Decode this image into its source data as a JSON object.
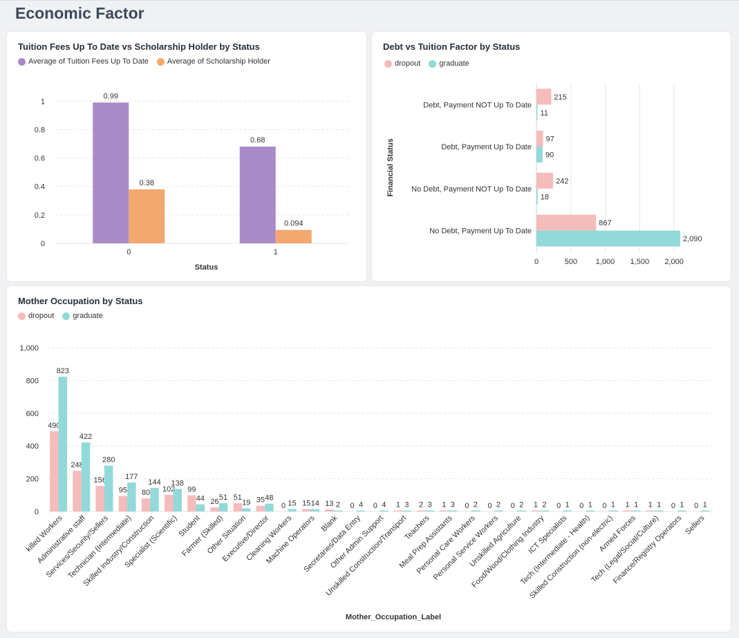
{
  "page": {
    "title": "Economic Factor"
  },
  "colors": {
    "purple": "#a98ac8",
    "orange": "#f2a86f",
    "dropout": "#f5bcbc",
    "graduate": "#93d9d9",
    "grid": "#e4e6ea",
    "text": "#333333"
  },
  "charts": {
    "tuition": {
      "title": "Tuition Fees Up To Date vs Scholarship Holder by Status",
      "legend": [
        "Average of Tuition Fees Up To Date",
        "Average of Scholarship Holder"
      ],
      "xlabel": "Status",
      "ticks": [
        "1",
        "0.8",
        "0.6",
        "0.4",
        "0.2",
        "0"
      ]
    },
    "debt": {
      "title": "Debt vs Tuition Factor by Status",
      "legend": [
        "dropout",
        "graduate"
      ],
      "ylabel": "Financial Status",
      "ticks": [
        "0",
        "500",
        "1,000",
        "1,500",
        "2,000"
      ]
    },
    "mother": {
      "title": "Mother Occupation by Status",
      "legend": [
        "dropout",
        "graduate"
      ],
      "xlabel": "Mother_Occupation_Label",
      "ticks": [
        "1,000",
        "800",
        "600",
        "400",
        "200",
        "0"
      ]
    }
  },
  "chart_data": [
    {
      "type": "bar",
      "title": "Tuition Fees Up To Date vs Scholarship Holder by Status",
      "xlabel": "Status",
      "ylabel": "",
      "categories": [
        "0",
        "1"
      ],
      "series": [
        {
          "name": "Average of Tuition Fees Up To Date",
          "values": [
            0.99,
            0.68
          ],
          "labels": [
            "0.99",
            "0.68"
          ]
        },
        {
          "name": "Average of Scholarship Holder",
          "values": [
            0.38,
            0.094
          ],
          "labels": [
            "0.38",
            "0.094"
          ]
        }
      ],
      "ylim": [
        0,
        1.05
      ],
      "grid": true,
      "legend": "top-left"
    },
    {
      "type": "bar",
      "orientation": "horizontal",
      "title": "Debt vs Tuition Factor by Status",
      "xlabel": "",
      "ylabel": "Financial Status",
      "categories": [
        "Debt, Payment NOT Up To Date",
        "Debt, Payment Up To Date",
        "No Debt, Payment NOT Up To Date",
        "No Debt, Payment Up To Date"
      ],
      "series": [
        {
          "name": "dropout",
          "values": [
            215,
            97,
            242,
            867
          ],
          "labels": [
            "215",
            "97",
            "242",
            "867"
          ]
        },
        {
          "name": "graduate",
          "values": [
            11,
            90,
            18,
            2090
          ],
          "labels": [
            "11",
            "90",
            "18",
            "2,090"
          ]
        }
      ],
      "xlim": [
        0,
        2200
      ],
      "grid": true,
      "legend": "top-left"
    },
    {
      "type": "bar",
      "title": "Mother Occupation by Status",
      "xlabel": "Mother_Occupation_Label",
      "ylabel": "",
      "categories": [
        "Unskilled Workers",
        "Administrative staff",
        "Services/Security/Sellers",
        "Technician (Intermediate)",
        "Skilled Industry/Construction",
        "Specialist (Scientific)",
        "Student",
        "Farmer (Skilled)",
        "Other Situation",
        "Executive/Director",
        "Cleaning Workers",
        "Machine Operators",
        "Blank",
        "Secretaries/Data Entry",
        "Other Admin Support",
        "Unskilled Construction/Transport",
        "Teachers",
        "Meal Prep Assistants",
        "Personal Care Workers",
        "Personal Service Workers",
        "Unskilled Agriculture",
        "Food/Wood/Clothing Industry",
        "ICT Specialists",
        "Tech (Intermediate - Health)",
        "Skilled Construction (non-electric)",
        "Armed Forces",
        "Tech (Legal/Social/Culture)",
        "Finance/Registry Operators",
        "Sellers"
      ],
      "category_display": [
        "killed Workers",
        "Administrative staff",
        "Services/Security/Sellers",
        "Technician (Intermediate)",
        "Skilled Industry/Construction",
        "Specialist (Scientific)",
        "Student",
        "Farmer (Skilled)",
        "Other Situation",
        "Executive/Director",
        "Cleaning Workers",
        "Machine Operators",
        "Blank",
        "Secretaries/Data Entry",
        "Other Admin Support",
        "Unskilled Construction/Transport",
        "Teachers",
        "Meal Prep Assistants",
        "Personal Care Workers",
        "Personal Service Workers",
        "Unskilled Agriculture",
        "Food/Wood/Clothing Industry",
        "ICT Specialists",
        "Tech (Intermediate - Health)",
        "Skilled Construction (non-electric)",
        "Armed Forces",
        "Tech (Legal/Social/Culture)",
        "Finance/Registry Operators",
        "Sellers"
      ],
      "series": [
        {
          "name": "dropout",
          "values": [
            490,
            248,
            156,
            95,
            80,
            102,
            99,
            26,
            51,
            35,
            0,
            15,
            13,
            0,
            0,
            1,
            2,
            1,
            0,
            0,
            0,
            1,
            0,
            0,
            0,
            1,
            1,
            0,
            0
          ],
          "labels": [
            "490",
            "248",
            "156",
            "95",
            "80",
            "102",
            "99",
            "26",
            "51",
            "35",
            "0",
            "15",
            "13",
            "0",
            "0",
            "1",
            "2",
            "1",
            "0",
            "0",
            "0",
            "1",
            "0",
            "0",
            "0",
            "1",
            "1",
            "0",
            "0"
          ]
        },
        {
          "name": "graduate",
          "values": [
            823,
            422,
            280,
            177,
            144,
            138,
            44,
            51,
            19,
            48,
            15,
            14,
            2,
            4,
            4,
            3,
            3,
            3,
            2,
            2,
            2,
            2,
            1,
            1,
            1,
            1,
            1,
            1,
            1
          ],
          "labels": [
            "823",
            "422",
            "280",
            "177",
            "144",
            "138",
            "44",
            "51",
            "19",
            "48",
            "15",
            "14",
            "2",
            "4",
            "4",
            "3",
            "3",
            "3",
            "2",
            "2",
            "2",
            "2",
            "1",
            "1",
            "1",
            "1",
            "1",
            "1",
            "1"
          ]
        }
      ],
      "ylim": [
        0,
        1000
      ],
      "grid": true,
      "legend": "top-left"
    }
  ]
}
